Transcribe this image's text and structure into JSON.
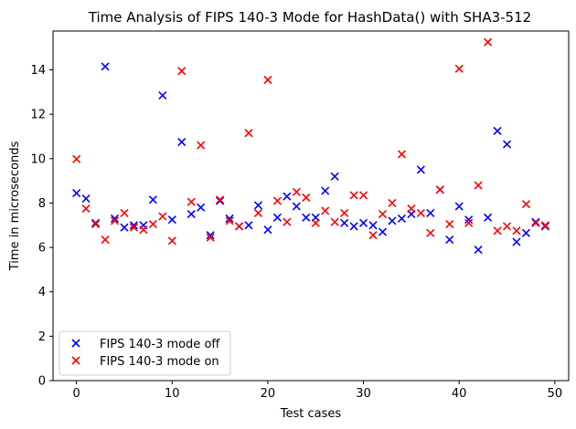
{
  "chart_data": {
    "type": "scatter",
    "title": "Time Analysis of FIPS 140-3 Mode for HashData() with SHA3-512",
    "xlabel": "Test cases",
    "ylabel": "Time in microseconds",
    "xlim": [
      -2.45,
      51.45
    ],
    "ylim": [
      0,
      15.75
    ],
    "xticks": [
      0,
      10,
      20,
      30,
      40,
      50
    ],
    "yticks": [
      0,
      2,
      4,
      6,
      8,
      10,
      12,
      14
    ],
    "grid": false,
    "legend_position": "lower-left",
    "series": [
      {
        "name": "FIPS 140-3 mode off",
        "color": "#0000ff",
        "marker": "x",
        "x": [
          0,
          1,
          2,
          3,
          4,
          5,
          6,
          7,
          8,
          9,
          10,
          11,
          12,
          13,
          14,
          15,
          16,
          17,
          18,
          19,
          20,
          21,
          22,
          23,
          24,
          25,
          26,
          27,
          28,
          29,
          30,
          31,
          32,
          33,
          34,
          35,
          36,
          37,
          38,
          39,
          40,
          41,
          42,
          43,
          44,
          45,
          46,
          47,
          48,
          49
        ],
        "y": [
          8.45,
          8.2,
          7.1,
          14.15,
          7.3,
          6.9,
          7.0,
          7.0,
          8.15,
          12.85,
          7.25,
          10.75,
          7.5,
          7.8,
          6.55,
          8.1,
          7.3,
          6.95,
          7.0,
          7.9,
          6.8,
          7.35,
          8.3,
          7.85,
          7.35,
          7.35,
          8.55,
          9.2,
          7.1,
          6.95,
          7.1,
          7.0,
          6.7,
          7.2,
          7.3,
          7.5,
          9.5,
          7.55,
          8.6,
          6.35,
          7.85,
          7.25,
          5.9,
          7.35,
          11.25,
          10.65,
          6.25,
          6.65,
          7.15,
          6.95
        ]
      },
      {
        "name": "FIPS 140-3 mode on",
        "color": "#ff0000",
        "marker": "x",
        "x": [
          0,
          1,
          2,
          3,
          4,
          5,
          6,
          7,
          8,
          9,
          10,
          11,
          12,
          13,
          14,
          15,
          16,
          17,
          18,
          19,
          20,
          21,
          22,
          23,
          24,
          25,
          26,
          27,
          28,
          29,
          30,
          31,
          32,
          33,
          34,
          35,
          36,
          37,
          38,
          39,
          40,
          41,
          42,
          43,
          44,
          45,
          46,
          47,
          48,
          49
        ],
        "y": [
          9.98,
          7.75,
          7.05,
          6.35,
          7.2,
          7.55,
          6.9,
          6.8,
          7.05,
          7.4,
          6.3,
          13.95,
          8.05,
          10.6,
          6.45,
          8.15,
          7.2,
          6.95,
          11.15,
          7.55,
          13.55,
          8.1,
          7.15,
          8.5,
          8.25,
          7.1,
          7.65,
          7.15,
          7.55,
          8.35,
          8.35,
          6.55,
          7.5,
          8.0,
          10.2,
          7.75,
          7.55,
          6.65,
          8.6,
          7.05,
          14.05,
          7.1,
          8.8,
          15.25,
          6.75,
          6.95,
          6.75,
          7.95,
          7.1,
          7.0
        ]
      }
    ]
  }
}
